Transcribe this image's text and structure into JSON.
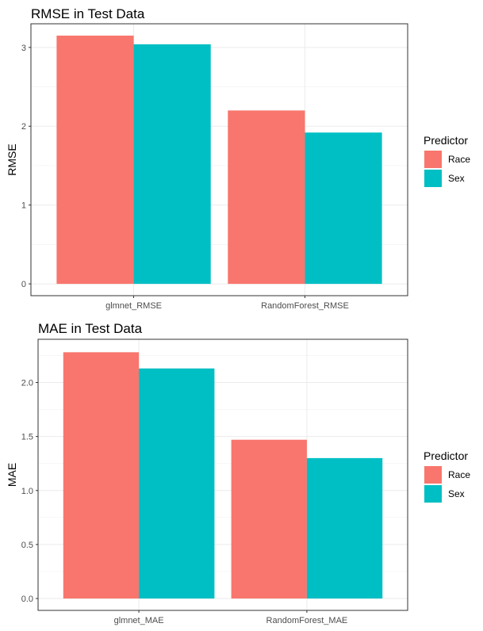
{
  "chart_data": [
    {
      "type": "bar",
      "title": "RMSE in Test Data",
      "xlabel": "",
      "ylabel": "RMSE",
      "categories": [
        "glmnet_RMSE",
        "RandomForest_RMSE"
      ],
      "series": [
        {
          "name": "Race",
          "values": [
            3.15,
            2.2
          ],
          "color": "#F8766D"
        },
        {
          "name": "Sex",
          "values": [
            3.04,
            1.92
          ],
          "color": "#00BFC4"
        }
      ],
      "yticks": [
        0,
        1,
        2,
        3
      ],
      "ylim": [
        -0.15,
        3.3
      ],
      "grid": true,
      "legend": {
        "title": "Predictor",
        "position": "right"
      }
    },
    {
      "type": "bar",
      "title": "MAE in Test Data",
      "xlabel": "",
      "ylabel": "MAE",
      "categories": [
        "glmnet_MAE",
        "RandomForest_MAE"
      ],
      "series": [
        {
          "name": "Race",
          "values": [
            2.28,
            1.47
          ],
          "color": "#F8766D"
        },
        {
          "name": "Sex",
          "values": [
            2.13,
            1.3
          ],
          "color": "#00BFC4"
        }
      ],
      "yticks": [
        0.0,
        0.5,
        1.0,
        1.5,
        2.0
      ],
      "yticklabels": [
        "0.0",
        "0.5",
        "1.0",
        "1.5",
        "2.0"
      ],
      "ylim": [
        -0.11,
        2.4
      ],
      "grid": true,
      "legend": {
        "title": "Predictor",
        "position": "right"
      }
    }
  ]
}
